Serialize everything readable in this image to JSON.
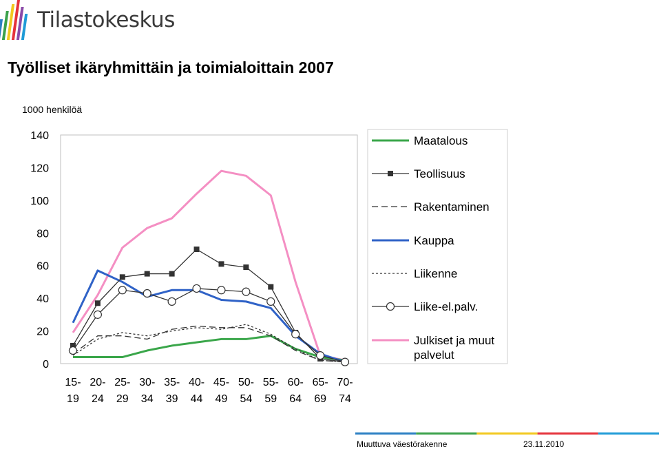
{
  "brand": {
    "name": "Tilastokeskus",
    "logo_colors": [
      "#2b7fc3",
      "#3aa14a",
      "#f2c81e",
      "#e5323b",
      "#8a4aa8",
      "#1f9bd7"
    ]
  },
  "title": "Työlliset ikäryhmittäin ja toimialoittain 2007",
  "unit": "1000 henkilöä",
  "footer": {
    "text": "Muuttuva väestörakenne",
    "date": "23.11.2010",
    "bar_colors": [
      "#2b7fc3",
      "#3aa14a",
      "#f2c81e",
      "#e5323b",
      "#1f9bd7"
    ]
  },
  "chart_data": {
    "type": "line",
    "title": "Työlliset ikäryhmittäin ja toimialoittain 2007",
    "ylabel": "1000 henkilöä",
    "xlabel": "",
    "ylim": [
      0,
      140
    ],
    "yticks": [
      0,
      20,
      40,
      60,
      80,
      100,
      120,
      140
    ],
    "categories": [
      "15-\n19",
      "20-\n24",
      "25-\n29",
      "30-\n34",
      "35-\n39",
      "40-\n44",
      "45-\n49",
      "50-\n54",
      "55-\n59",
      "60-\n64",
      "65-\n69",
      "70-\n74"
    ],
    "categories_top": [
      "15-",
      "20-",
      "25-",
      "30-",
      "35-",
      "40-",
      "45-",
      "50-",
      "55-",
      "60-",
      "65-",
      "70-"
    ],
    "categories_bottom": [
      "19",
      "24",
      "29",
      "34",
      "39",
      "44",
      "49",
      "54",
      "59",
      "64",
      "69",
      "74"
    ],
    "grid": false,
    "legend_position": "right",
    "series": [
      {
        "name": "Maatalous",
        "color": "#3aa64a",
        "style": "solid",
        "marker": "none",
        "values": [
          4,
          4,
          4,
          8,
          11,
          13,
          15,
          15,
          17,
          9,
          4,
          2
        ]
      },
      {
        "name": "Teollisuus",
        "color": "#333333",
        "style": "solid",
        "marker": "square",
        "values": [
          11,
          37,
          53,
          55,
          55,
          70,
          61,
          59,
          47,
          19,
          3,
          1
        ]
      },
      {
        "name": "Rakentaminen",
        "color": "#333333",
        "style": "dashed",
        "marker": "none",
        "values": [
          6,
          17,
          17,
          15,
          21,
          23,
          22,
          22,
          17,
          8,
          2,
          1
        ]
      },
      {
        "name": "Kauppa",
        "color": "#2f62c7",
        "style": "solid",
        "marker": "none",
        "values": [
          25,
          57,
          50,
          41,
          45,
          45,
          39,
          38,
          34,
          17,
          6,
          1
        ]
      },
      {
        "name": "Liikenne",
        "color": "#333333",
        "style": "dotted",
        "marker": "none",
        "values": [
          5,
          15,
          19,
          17,
          20,
          22,
          21,
          24,
          18,
          9,
          2,
          1
        ]
      },
      {
        "name": "Liike-el.palv.",
        "color": "#333333",
        "style": "solid",
        "marker": "circle",
        "values": [
          8,
          30,
          45,
          43,
          38,
          46,
          45,
          44,
          38,
          18,
          5,
          1
        ]
      },
      {
        "name": "Julkiset ja muut palvelut",
        "label_lines": [
          "Julkiset ja muut",
          "palvelut"
        ],
        "color": "#f48fc3",
        "style": "solid",
        "marker": "none",
        "values": [
          19,
          42,
          71,
          83,
          89,
          104,
          118,
          115,
          103,
          50,
          5,
          2
        ]
      }
    ]
  }
}
